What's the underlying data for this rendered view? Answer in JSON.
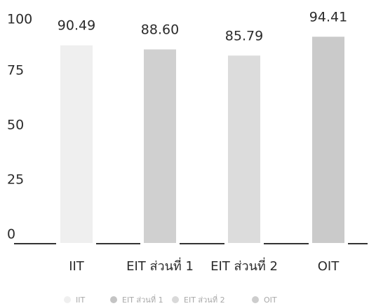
{
  "chart_data": {
    "type": "bar",
    "categories": [
      "IIT",
      "EIT ส่วนที่ 1",
      "EIT ส่วนที่ 2",
      "OIT"
    ],
    "values": [
      90.49,
      88.6,
      85.79,
      94.41
    ],
    "value_labels": [
      "90.49",
      "88.60",
      "85.79",
      "94.41"
    ],
    "title": "",
    "xlabel": "",
    "ylabel": "",
    "ylim": [
      0,
      100
    ],
    "yticks": [
      0,
      25,
      50,
      75,
      100
    ],
    "grid": false,
    "legend": {
      "placement": "bottom",
      "entries": [
        "IIT",
        "EIT ส่วนที่ 1",
        "EIT ส่วนที่ 2",
        "OIT"
      ]
    },
    "colors": [
      "#efefef",
      "#d0d0d0",
      "#dcdcdc",
      "#cacaca"
    ],
    "legend_colors": [
      "#efefef",
      "#c4c4c4",
      "#d9d9d9",
      "#cdcdcd"
    ],
    "axis_color": "#333333"
  }
}
